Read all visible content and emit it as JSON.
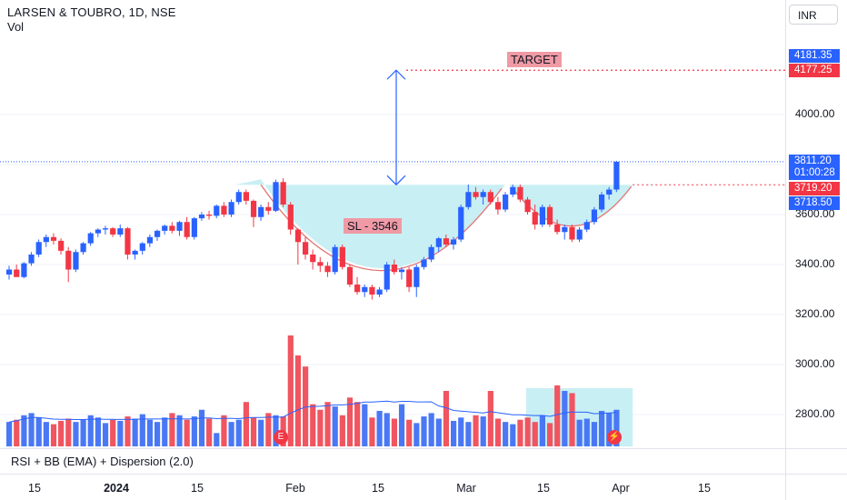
{
  "legend": {
    "title": "LARSEN & TOUBRO, 1D, NSE",
    "sub": "Vol"
  },
  "currency": "INR",
  "indicator": "RSI + BB (EMA) + Dispersion (2.0)",
  "annotations": {
    "target": "TARGET",
    "stop_loss": "SL - 3546"
  },
  "badges": {
    "earnings": "E",
    "split": "⚡"
  },
  "price_tags": {
    "target_top": "4181.35",
    "target": "4177.25",
    "last": "3811.20",
    "countdown": "01:00:28",
    "neckline": "3719.20",
    "neckline2": "3718.50"
  },
  "colors": {
    "up": "#2962ff",
    "down": "#f23645",
    "cup_fill": "#b2ebf2",
    "target_line": "#f23645"
  },
  "chart_data": {
    "type": "candlestick",
    "y_axis_labels": [
      "4000.00",
      "3800.00",
      "3600.00",
      "3400.00",
      "3200.00",
      "3000.00",
      "2800.00"
    ],
    "x_axis_labels": [
      "15",
      "2024",
      "15",
      "Feb",
      "15",
      "Mar",
      "15",
      "Apr",
      "15"
    ],
    "ylim": [
      2700,
      4220
    ],
    "levels": {
      "target": 4177.25,
      "neckline": 3719.2,
      "stop_loss": 3546
    },
    "candles": [
      [
        3360,
        3395,
        3340,
        3380
      ],
      [
        3380,
        3400,
        3360,
        3350
      ],
      [
        3350,
        3410,
        3345,
        3405
      ],
      [
        3405,
        3450,
        3395,
        3440
      ],
      [
        3440,
        3500,
        3430,
        3490
      ],
      [
        3490,
        3520,
        3470,
        3510
      ],
      [
        3510,
        3525,
        3480,
        3495
      ],
      [
        3495,
        3505,
        3440,
        3455
      ],
      [
        3455,
        3470,
        3330,
        3380
      ],
      [
        3380,
        3460,
        3370,
        3450
      ],
      [
        3450,
        3490,
        3440,
        3485
      ],
      [
        3485,
        3530,
        3475,
        3525
      ],
      [
        3525,
        3545,
        3510,
        3540
      ],
      [
        3540,
        3555,
        3520,
        3545
      ],
      [
        3545,
        3550,
        3510,
        3520
      ],
      [
        3520,
        3560,
        3510,
        3545
      ],
      [
        3545,
        3550,
        3420,
        3440
      ],
      [
        3440,
        3460,
        3420,
        3455
      ],
      [
        3455,
        3490,
        3440,
        3485
      ],
      [
        3485,
        3520,
        3470,
        3510
      ],
      [
        3510,
        3540,
        3495,
        3535
      ],
      [
        3535,
        3560,
        3520,
        3555
      ],
      [
        3555,
        3570,
        3525,
        3535
      ],
      [
        3535,
        3575,
        3515,
        3570
      ],
      [
        3570,
        3590,
        3500,
        3510
      ],
      [
        3510,
        3590,
        3500,
        3585
      ],
      [
        3585,
        3610,
        3575,
        3600
      ],
      [
        3600,
        3615,
        3580,
        3595
      ],
      [
        3595,
        3640,
        3585,
        3635
      ],
      [
        3635,
        3650,
        3590,
        3600
      ],
      [
        3600,
        3660,
        3590,
        3650
      ],
      [
        3650,
        3700,
        3640,
        3690
      ],
      [
        3690,
        3700,
        3640,
        3655
      ],
      [
        3655,
        3660,
        3550,
        3590
      ],
      [
        3590,
        3640,
        3575,
        3630
      ],
      [
        3630,
        3650,
        3600,
        3615
      ],
      [
        3615,
        3740,
        3610,
        3730
      ],
      [
        3730,
        3745,
        3630,
        3640
      ],
      [
        3640,
        3650,
        3520,
        3540
      ],
      [
        3540,
        3545,
        3400,
        3490
      ],
      [
        3490,
        3510,
        3420,
        3440
      ],
      [
        3440,
        3460,
        3380,
        3410
      ],
      [
        3410,
        3430,
        3370,
        3395
      ],
      [
        3395,
        3410,
        3350,
        3370
      ],
      [
        3370,
        3480,
        3360,
        3470
      ],
      [
        3470,
        3480,
        3380,
        3390
      ],
      [
        3390,
        3400,
        3310,
        3320
      ],
      [
        3320,
        3350,
        3280,
        3290
      ],
      [
        3290,
        3320,
        3270,
        3310
      ],
      [
        3310,
        3320,
        3260,
        3280
      ],
      [
        3280,
        3310,
        3270,
        3300
      ],
      [
        3300,
        3410,
        3290,
        3400
      ],
      [
        3400,
        3420,
        3360,
        3370
      ],
      [
        3370,
        3390,
        3340,
        3380
      ],
      [
        3380,
        3390,
        3290,
        3310
      ],
      [
        3310,
        3400,
        3270,
        3390
      ],
      [
        3390,
        3430,
        3380,
        3420
      ],
      [
        3420,
        3480,
        3410,
        3470
      ],
      [
        3470,
        3510,
        3450,
        3505
      ],
      [
        3505,
        3520,
        3470,
        3480
      ],
      [
        3480,
        3510,
        3460,
        3500
      ],
      [
        3500,
        3640,
        3490,
        3630
      ],
      [
        3630,
        3720,
        3620,
        3690
      ],
      [
        3690,
        3710,
        3660,
        3670
      ],
      [
        3670,
        3700,
        3640,
        3690
      ],
      [
        3690,
        3700,
        3640,
        3650
      ],
      [
        3650,
        3670,
        3600,
        3620
      ],
      [
        3620,
        3690,
        3610,
        3680
      ],
      [
        3680,
        3720,
        3670,
        3710
      ],
      [
        3710,
        3720,
        3650,
        3660
      ],
      [
        3660,
        3670,
        3600,
        3610
      ],
      [
        3610,
        3640,
        3540,
        3560
      ],
      [
        3560,
        3640,
        3550,
        3630
      ],
      [
        3630,
        3640,
        3550,
        3560
      ],
      [
        3560,
        3580,
        3520,
        3530
      ],
      [
        3530,
        3560,
        3500,
        3550
      ],
      [
        3550,
        3560,
        3490,
        3500
      ],
      [
        3500,
        3550,
        3490,
        3540
      ],
      [
        3540,
        3580,
        3530,
        3570
      ],
      [
        3570,
        3630,
        3560,
        3620
      ],
      [
        3620,
        3690,
        3610,
        3680
      ],
      [
        3680,
        3710,
        3660,
        3700
      ],
      [
        3700,
        3815,
        3690,
        3811.2
      ]
    ],
    "volume": [
      0.22,
      0.24,
      0.28,
      0.3,
      0.26,
      0.22,
      0.2,
      0.23,
      0.25,
      0.22,
      0.24,
      0.28,
      0.26,
      0.21,
      0.24,
      0.23,
      0.27,
      0.25,
      0.29,
      0.24,
      0.22,
      0.26,
      0.3,
      0.28,
      0.24,
      0.27,
      0.33,
      0.25,
      0.12,
      0.28,
      0.22,
      0.24,
      0.4,
      0.26,
      0.24,
      0.3,
      0.28,
      0.27,
      1.0,
      0.82,
      0.72,
      0.38,
      0.33,
      0.4,
      0.36,
      0.28,
      0.44,
      0.4,
      0.38,
      0.26,
      0.32,
      0.3,
      0.25,
      0.38,
      0.24,
      0.21,
      0.27,
      0.3,
      0.25,
      0.5,
      0.23,
      0.26,
      0.22,
      0.28,
      0.27,
      0.5,
      0.25,
      0.22,
      0.2,
      0.24,
      0.26,
      0.22,
      0.28,
      0.21,
      0.55,
      0.5,
      0.48,
      0.24,
      0.25,
      0.22,
      0.32,
      0.3,
      0.33
    ]
  }
}
